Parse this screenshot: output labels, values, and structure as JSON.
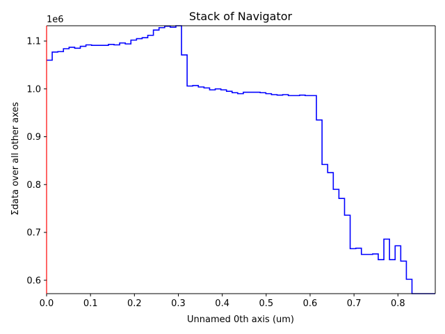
{
  "chart_data": {
    "type": "line",
    "style": "step",
    "title": "Stack of  Navigator",
    "xlabel": "Unnamed 0th axis (um)",
    "ylabel": "Σdata over all other axes",
    "y_offset_label": "1e6",
    "xlim": [
      0.0,
      0.885
    ],
    "ylim": [
      0.572,
      1.132
    ],
    "y_scale_factor": 1000000,
    "x_ticks": [
      0.0,
      0.1,
      0.2,
      0.3,
      0.4,
      0.5,
      0.6,
      0.7,
      0.8
    ],
    "x_tick_labels": [
      "0.0",
      "0.1",
      "0.2",
      "0.3",
      "0.4",
      "0.5",
      "0.6",
      "0.7",
      "0.8"
    ],
    "y_ticks": [
      0.6,
      0.7,
      0.8,
      0.9,
      1.0,
      1.1
    ],
    "y_tick_labels": [
      "0.6",
      "0.7",
      "0.8",
      "0.9",
      "1.0",
      "1.1"
    ],
    "grid": false,
    "legend": "none",
    "colors": {
      "series": "#0000ff",
      "left_spine": "#ff0000",
      "axes": "#000000"
    },
    "step_width": 0.0128,
    "x": [
      0.0,
      0.0128,
      0.0256,
      0.0384,
      0.0512,
      0.064,
      0.0768,
      0.0896,
      0.1024,
      0.1152,
      0.128,
      0.1408,
      0.1536,
      0.1664,
      0.1792,
      0.192,
      0.2048,
      0.2176,
      0.2304,
      0.2432,
      0.256,
      0.2688,
      0.2816,
      0.2944,
      0.3072,
      0.32,
      0.3328,
      0.3456,
      0.3584,
      0.3712,
      0.384,
      0.3968,
      0.4096,
      0.4224,
      0.4352,
      0.448,
      0.4608,
      0.4736,
      0.4864,
      0.4992,
      0.512,
      0.5248,
      0.5376,
      0.5504,
      0.5632,
      0.576,
      0.5888,
      0.6016,
      0.6144,
      0.6272,
      0.64,
      0.6528,
      0.6656,
      0.6784,
      0.6912,
      0.704,
      0.7168,
      0.7296,
      0.7424,
      0.7552,
      0.768,
      0.7808,
      0.7936,
      0.8064,
      0.8192,
      0.832,
      0.8448,
      0.8576,
      0.8704,
      0.8832
    ],
    "values": [
      1.06,
      1.077,
      1.078,
      1.084,
      1.087,
      1.085,
      1.089,
      1.092,
      1.091,
      1.091,
      1.091,
      1.093,
      1.092,
      1.096,
      1.094,
      1.102,
      1.105,
      1.107,
      1.112,
      1.123,
      1.128,
      1.131,
      1.129,
      1.132,
      1.071,
      1.006,
      1.007,
      1.004,
      1.002,
      0.998,
      1.0,
      0.998,
      0.995,
      0.992,
      0.99,
      0.993,
      0.993,
      0.993,
      0.992,
      0.99,
      0.988,
      0.987,
      0.988,
      0.986,
      0.986,
      0.987,
      0.986,
      0.986,
      0.935,
      0.842,
      0.825,
      0.79,
      0.771,
      0.736,
      0.666,
      0.667,
      0.654,
      0.654,
      0.655,
      0.643,
      0.686,
      0.643,
      0.672,
      0.64,
      0.602,
      0.572,
      0.572,
      0.572,
      0.572,
      0.572
    ]
  }
}
